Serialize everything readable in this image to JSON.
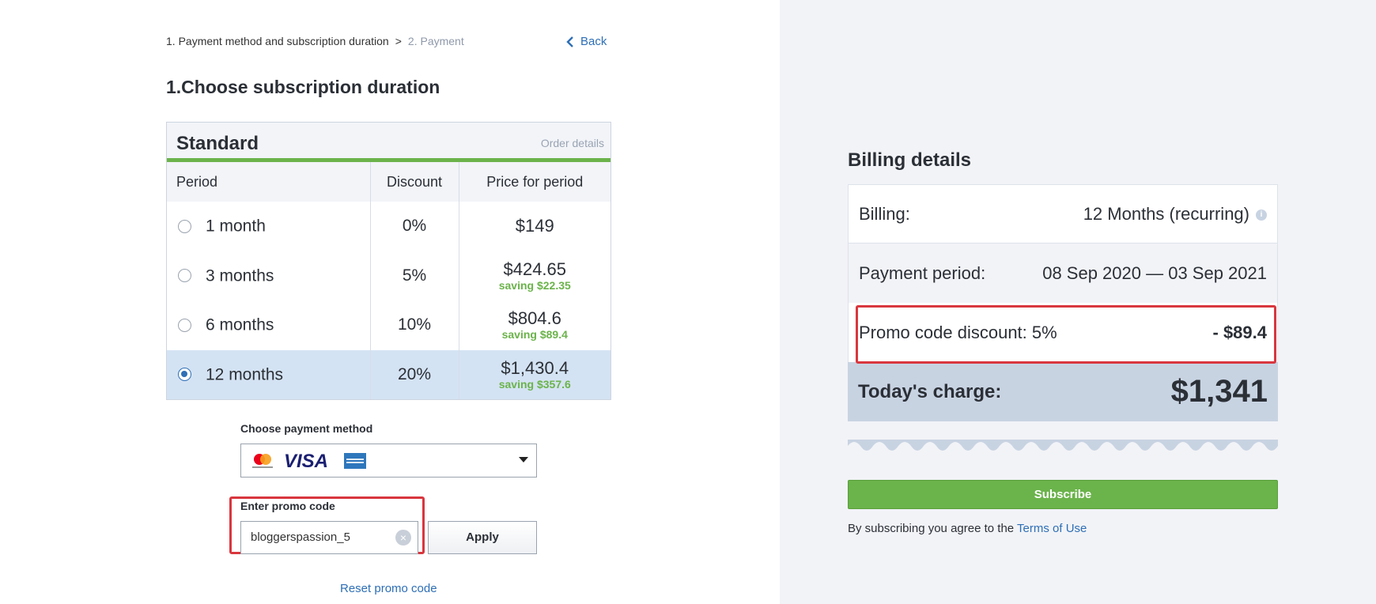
{
  "breadcrumb": {
    "step1": "1. Payment method and subscription duration",
    "separator": ">",
    "step2": "2. Payment"
  },
  "back_label": "Back",
  "section_title": "1.Choose subscription duration",
  "plan": {
    "name": "Standard",
    "order_details": "Order details",
    "columns": [
      "Period",
      "Discount",
      "Price for period"
    ],
    "rows": [
      {
        "period": "1 month",
        "discount": "0%",
        "price": "$149",
        "saving": "",
        "selected": false
      },
      {
        "period": "3 months",
        "discount": "5%",
        "price": "$424.65",
        "saving": "saving $22.35",
        "selected": false
      },
      {
        "period": "6 months",
        "discount": "10%",
        "price": "$804.6",
        "saving": "saving $89.4",
        "selected": false
      },
      {
        "period": "12 months",
        "discount": "20%",
        "price": "$1,430.4",
        "saving": "saving $357.6",
        "selected": true
      }
    ]
  },
  "payment": {
    "label": "Choose payment method",
    "cards": [
      "mastercard-icon",
      "visa-icon",
      "amex-icon"
    ]
  },
  "promo": {
    "label": "Enter promo code",
    "value": "bloggerspassion_5",
    "apply_label": "Apply",
    "reset_label": "Reset promo code"
  },
  "billing": {
    "title": "Billing details",
    "billing_label": "Billing:",
    "billing_value": "12 Months (recurring)",
    "period_label": "Payment period:",
    "period_value": "08 Sep 2020 — 03 Sep 2021",
    "promo_label": "Promo code discount: 5%",
    "promo_value": "- $89.4",
    "charge_label": "Today's charge:",
    "charge_value": "$1,341"
  },
  "subscribe_label": "Subscribe",
  "terms": {
    "prefix": "By subscribing you agree to the",
    "link": "Terms of Use"
  },
  "colors": {
    "accent_green": "#6bb34b",
    "link_blue": "#2e6fb6",
    "highlight_red": "#d9363e"
  }
}
